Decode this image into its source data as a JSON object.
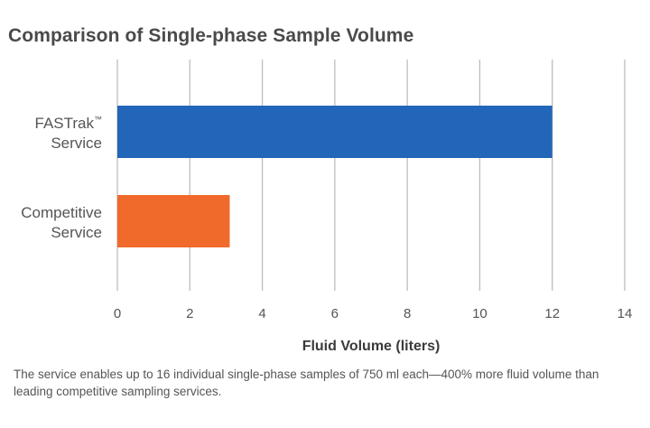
{
  "chart_data": {
    "type": "bar",
    "orientation": "horizontal",
    "title": "Comparison of Single-phase Sample Volume",
    "xlabel": "Fluid Volume (liters)",
    "ylabel": "",
    "xlim": [
      0,
      14
    ],
    "ticks": [
      "0",
      "2",
      "4",
      "6",
      "8",
      "10",
      "12",
      "14"
    ],
    "grid": true,
    "categories": [
      {
        "line1": "FASTrak",
        "sup": "™",
        "line2": "Service"
      },
      {
        "line1": "Competitive",
        "sup": "",
        "line2": "Service"
      }
    ],
    "values": [
      12,
      3.1
    ],
    "colors": [
      "#2166b8",
      "#ef6a2b"
    ]
  },
  "caption": "The service enables up to 16 individual single-phase samples of 750 ml each—400% more fluid volume than leading competitive sampling services."
}
